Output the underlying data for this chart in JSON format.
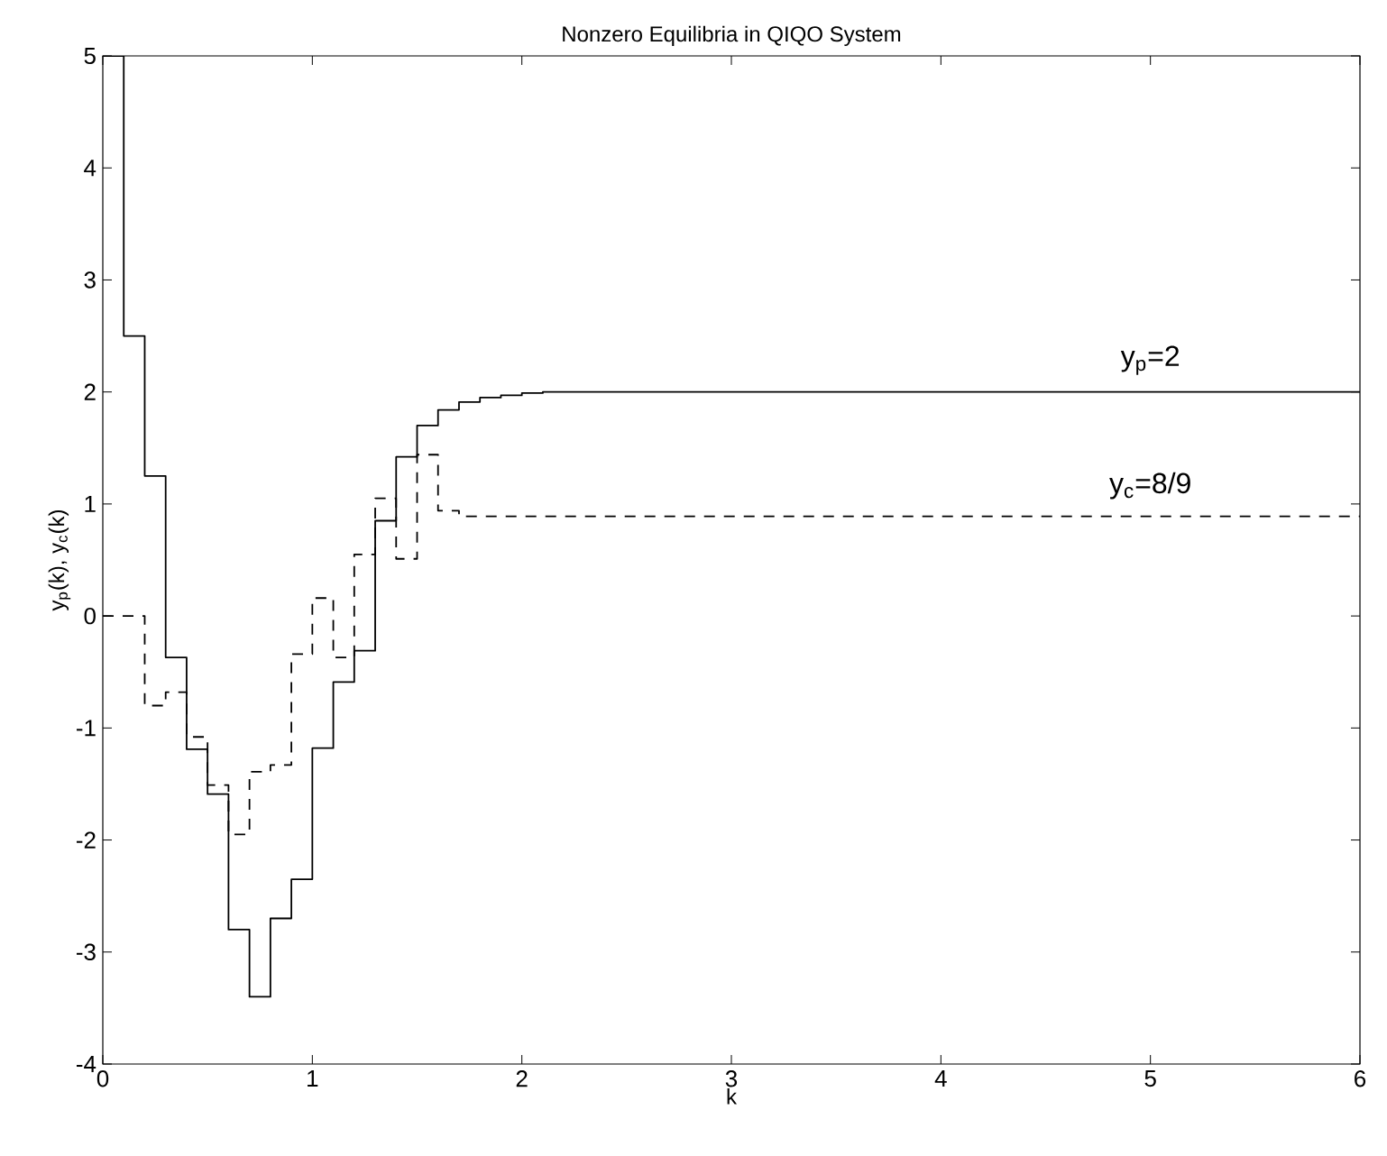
{
  "chart_data": {
    "type": "step",
    "title": "Nonzero Equilibria in QIQO System",
    "xlabel": "k",
    "ylabel": "y$_{p}$(k), y$_{c}$(k)",
    "xlim": [
      0,
      6
    ],
    "ylim": [
      -4,
      5
    ],
    "xticks": [
      0,
      1,
      2,
      3,
      4,
      5,
      6
    ],
    "yticks": [
      -4,
      -3,
      -2,
      -1,
      0,
      1,
      2,
      3,
      4,
      5
    ],
    "series": [
      {
        "color": "#000000",
        "line_style": "solid",
        "x": [
          0,
          0.1,
          0.2,
          0.3,
          0.4,
          0.5,
          0.6,
          0.7,
          0.8,
          0.9,
          1.0,
          1.1,
          1.2,
          1.3,
          1.4,
          1.5,
          1.6,
          1.7,
          1.8,
          1.9,
          2.0,
          2.1,
          6
        ],
        "values": [
          5,
          2.5,
          1.25,
          -0.37,
          -1.19,
          -1.59,
          -2.8,
          -3.4,
          -2.7,
          -2.35,
          -1.18,
          -0.59,
          -0.31,
          0.85,
          1.42,
          1.7,
          1.84,
          1.91,
          1.95,
          1.97,
          1.99,
          2,
          2
        ]
      },
      {
        "color": "#000000",
        "line_style": "dashed",
        "x": [
          0,
          0.2,
          0.3,
          0.4,
          0.5,
          0.6,
          0.7,
          0.8,
          0.9,
          1.0,
          1.1,
          1.2,
          1.3,
          1.4,
          1.5,
          1.6,
          1.7,
          6
        ],
        "values": [
          0,
          -0.8,
          -0.68,
          -1.08,
          -1.51,
          -1.95,
          -1.39,
          -1.33,
          -0.34,
          0.16,
          -0.37,
          0.55,
          1.05,
          0.51,
          1.44,
          0.94,
          0.89,
          0.89
        ]
      }
    ],
    "annotations": [
      {
        "text": "y$_{p}$=2",
        "x": 5,
        "y": 2
      },
      {
        "text": "y$_{c}$=8/9",
        "x": 5,
        "y": 0.89
      }
    ]
  }
}
